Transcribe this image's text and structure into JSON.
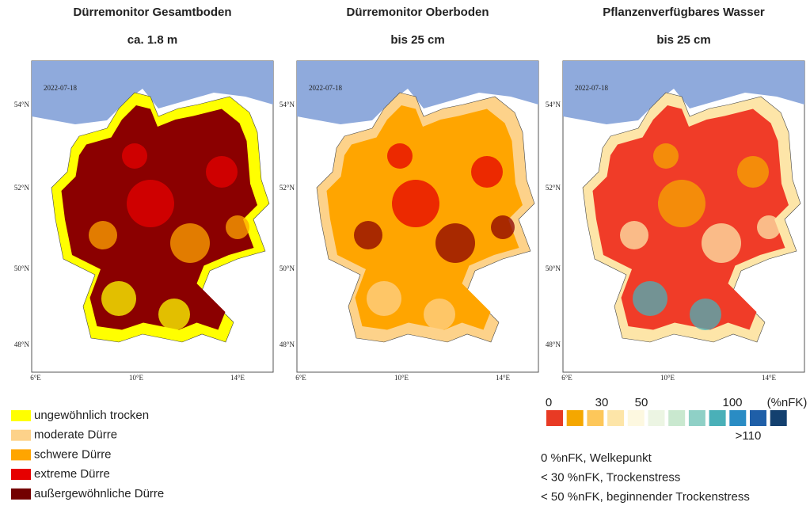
{
  "panels": [
    {
      "title": "Dürremonitor Gesamtboden",
      "subtitle": "ca. 1.8 m",
      "date": "2022-07-18",
      "lat_labels": [
        "54°N",
        "52°N",
        "50°N",
        "48°N"
      ],
      "lon_labels": [
        "6°E",
        "10°E",
        "14°E"
      ]
    },
    {
      "title": "Dürremonitor Oberboden",
      "subtitle": "bis 25 cm",
      "date": "2022-07-18",
      "lat_labels": [
        "54°N",
        "52°N",
        "50°N",
        "48°N"
      ],
      "lon_labels": [
        "6°E",
        "10°E",
        "14°E"
      ]
    },
    {
      "title": "Pflanzenverfügbares Wasser",
      "subtitle": "bis 25 cm",
      "date": "2022-07-18",
      "lat_labels": [
        "54°N",
        "52°N",
        "50°N",
        "48°N"
      ],
      "lon_labels": [
        "6°E",
        "10°E",
        "14°E"
      ]
    }
  ],
  "drought_legend": [
    "ungewöhnlich trocken",
    "moderate Dürre",
    "schwere Dürre",
    "extreme Dürre",
    "außergewöhnliche Dürre"
  ],
  "nfk_legend": {
    "labels": [
      "0",
      "30",
      "50",
      "100",
      "(%nFK)",
      ">110"
    ],
    "notes": [
      "0 %nFK, Welkepunkt",
      "< 30 %nFK, Trockenstress",
      "< 50 %nFK, beginnender Trockenstress"
    ]
  }
}
